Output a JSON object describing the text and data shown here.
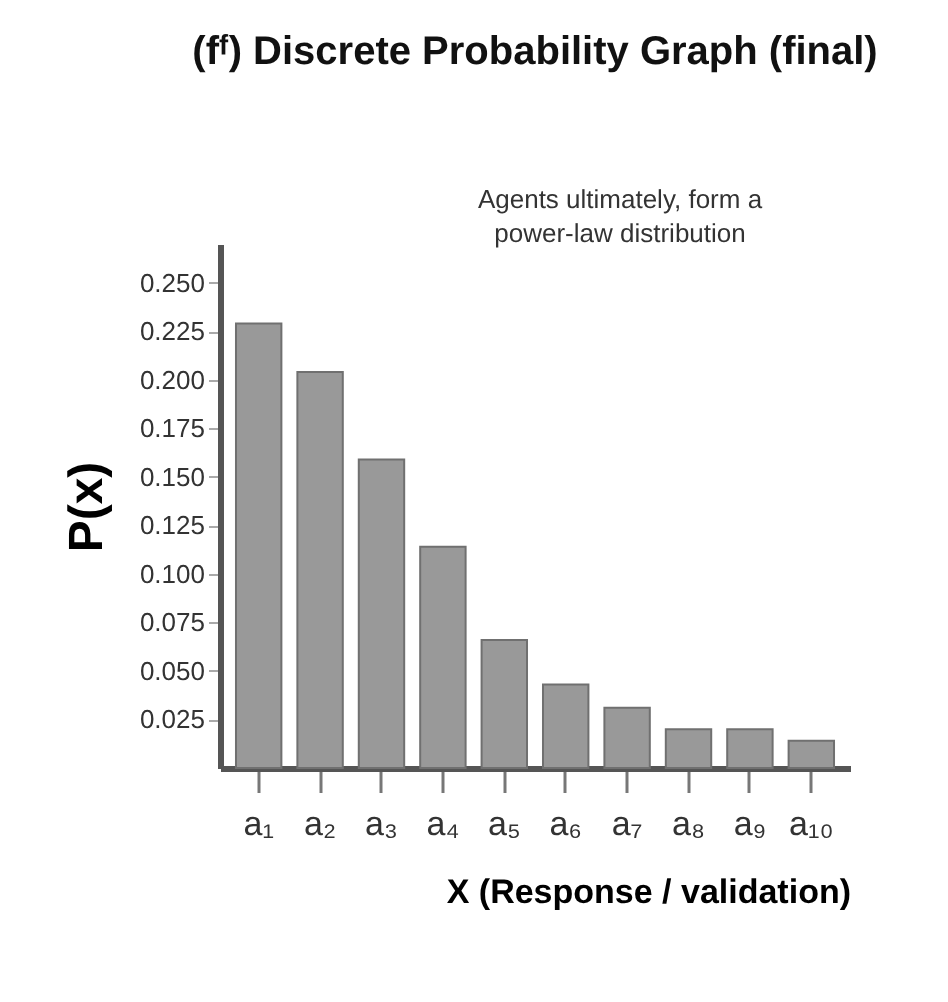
{
  "chart_data": {
    "type": "bar",
    "title": "(fᶠ) Discrete Probability Graph (final)",
    "xlabel": "X (Response / validation)",
    "ylabel": "P(x)",
    "annotations": [
      "Agents ultimately, form a\npower-law distribution"
    ],
    "categories": [
      "a₁",
      "a₂",
      "a₃",
      "a₄",
      "a₅",
      "a₆",
      "a₇",
      "a₈",
      "a₉",
      "a₁₀"
    ],
    "values": [
      0.229,
      0.204,
      0.159,
      0.114,
      0.066,
      0.043,
      0.031,
      0.02,
      0.02,
      0.014
    ],
    "color": "#999999",
    "ylim": [
      0,
      0.27
    ],
    "yticks": [
      0.025,
      {
        "value": 0.05,
        "label": "0.050"
      },
      0.075,
      {
        "value": 0.1,
        "label": "0.100"
      },
      0.125,
      {
        "value": 0.15,
        "label": "0.150"
      },
      0.175,
      {
        "value": 0.2,
        "label": "0.200"
      },
      0.225,
      {
        "value": 0.25,
        "label": "0.250"
      }
    ],
    "grid": false
  }
}
